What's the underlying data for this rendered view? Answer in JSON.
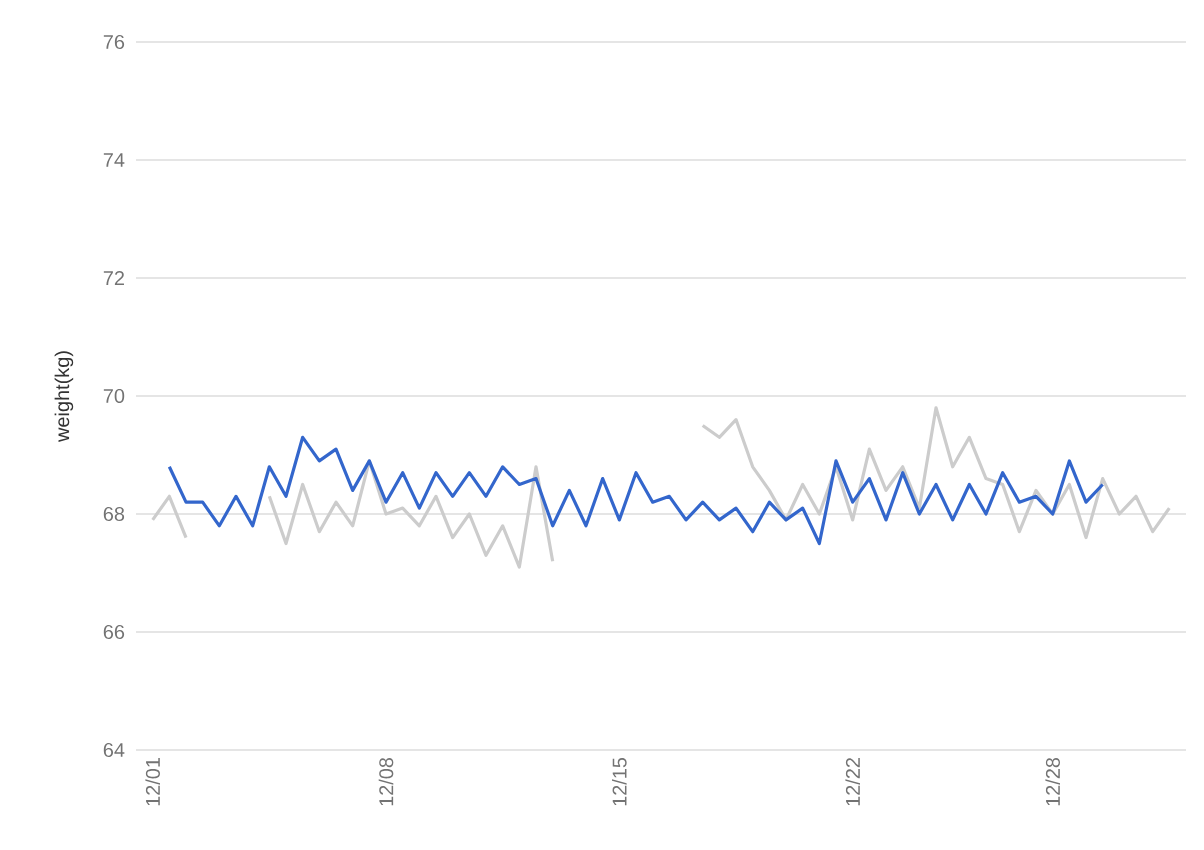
{
  "chart_data": {
    "type": "line",
    "ylabel": "weight(kg)",
    "categories": [
      "12/01",
      null,
      null,
      null,
      null,
      null,
      null,
      null,
      null,
      null,
      null,
      null,
      null,
      null,
      "12/08",
      null,
      null,
      null,
      null,
      null,
      null,
      null,
      null,
      null,
      null,
      null,
      null,
      null,
      "12/15",
      null,
      null,
      null,
      null,
      null,
      null,
      null,
      null,
      null,
      null,
      null,
      null,
      null,
      "12/22",
      null,
      null,
      null,
      null,
      null,
      null,
      null,
      null,
      null,
      null,
      null,
      "12/28",
      null,
      null,
      null,
      null,
      null,
      null,
      null
    ],
    "series": [
      {
        "color": "#cccccc",
        "values": [
          67.9,
          68.3,
          67.6,
          null,
          null,
          null,
          null,
          68.3,
          67.5,
          68.5,
          67.7,
          68.2,
          67.8,
          68.9,
          68.0,
          68.1,
          67.8,
          68.3,
          67.6,
          68.0,
          67.3,
          67.8,
          67.1,
          68.8,
          67.2,
          null,
          null,
          null,
          null,
          null,
          null,
          null,
          null,
          69.5,
          69.3,
          69.6,
          68.8,
          68.4,
          67.9,
          68.5,
          68.0,
          68.8,
          67.9,
          69.1,
          68.4,
          68.8,
          68.1,
          69.8,
          68.8,
          69.3,
          68.6,
          68.5,
          67.7,
          68.4,
          68.0,
          68.5,
          67.6,
          68.6,
          68.0,
          68.3,
          67.7,
          68.1
        ]
      },
      {
        "color": "#3366cc",
        "values": [
          null,
          68.8,
          68.2,
          68.2,
          67.8,
          68.3,
          67.8,
          68.8,
          68.3,
          69.3,
          68.9,
          69.1,
          68.4,
          68.9,
          68.2,
          68.7,
          68.1,
          68.7,
          68.3,
          68.7,
          68.3,
          68.8,
          68.5,
          68.6,
          67.8,
          68.4,
          67.8,
          68.6,
          67.9,
          68.7,
          68.2,
          68.3,
          67.9,
          68.2,
          67.9,
          68.1,
          67.7,
          68.2,
          67.9,
          68.1,
          67.5,
          68.9,
          68.2,
          68.6,
          67.9,
          68.7,
          68.0,
          68.5,
          67.9,
          68.5,
          68.0,
          68.7,
          68.2,
          68.3,
          68.0,
          68.9,
          68.2,
          68.5,
          null,
          null,
          null,
          null
        ]
      }
    ],
    "ylim": [
      64,
      76
    ],
    "yticks": [
      64,
      66,
      68,
      70,
      72,
      74,
      76
    ],
    "grid": "y"
  }
}
